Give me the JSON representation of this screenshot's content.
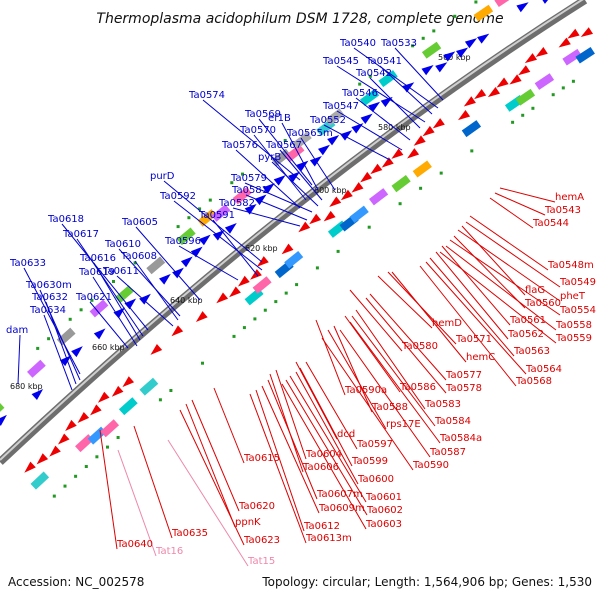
{
  "title": "Thermoplasma acidophilum DSM 1728, complete genome",
  "footer": {
    "accession": "Accession: NC_002578",
    "summary": "Topology: circular; Length: 1,564,906 bp; Genes: 1,530"
  },
  "colors": {
    "plus_label": "#0000cc",
    "minus_label": "#dd0000",
    "rna_label": "#ee88aa",
    "backbone": "#888888"
  },
  "kbp_ticks": [
    "560 kbp",
    "580 kbp",
    "600 kbp",
    "620 kbp",
    "640 kbp",
    "660 kbp",
    "680 kbp"
  ],
  "plus_strand_labels": [
    "Ta0533",
    "Ta0540",
    "Ta0541",
    "Ta0545",
    "Ta0542",
    "Ta0546",
    "Ta0547",
    "Ta0552",
    "Ta0574",
    "Ta0569",
    "ef1B",
    "Ta0570",
    "Ta0565m",
    "Ta0576",
    "Ta0567",
    "pyrB",
    "purD",
    "Ta0579",
    "Ta0592",
    "Ta0581",
    "Ta0582",
    "Ta0591",
    "Ta0618",
    "Ta0605",
    "Ta0617",
    "Ta0610",
    "Ta0596",
    "Ta0633",
    "Ta0616",
    "Ta0608",
    "Ta0619",
    "Ta0611",
    "Ta0630m",
    "Ta0632",
    "Ta0621",
    "Ta0634",
    "dam"
  ],
  "minus_strand_labels": [
    "hemA",
    "Ta0543",
    "Ta0544",
    "Ta0548m",
    "Ta0549",
    "flaG",
    "pheT",
    "Ta0560",
    "Ta0554",
    "Ta0561",
    "Ta0558",
    "Ta0562",
    "Ta0559",
    "hemD",
    "Ta0571",
    "Ta0563",
    "Ta0580",
    "hemC",
    "Ta0564",
    "Ta0577",
    "Ta0568",
    "Ta0578",
    "Ta0590a",
    "Ta0586",
    "Ta0583",
    "Ta0588",
    "Ta0584",
    "rps17E",
    "Ta0584a",
    "dcd",
    "Ta0597",
    "Ta0587",
    "Ta0604",
    "Ta0599",
    "Ta0590",
    "Ta0615",
    "Ta0606",
    "Ta0600",
    "Ta0607m",
    "Ta0601",
    "Ta0609m",
    "Ta0602",
    "Ta0620",
    "Ta0603",
    "ppnK",
    "Ta0612",
    "Ta0635",
    "Ta0623",
    "Ta0613m",
    "Ta0640"
  ],
  "rna_labels": [
    "Tat16",
    "Tat15"
  ]
}
